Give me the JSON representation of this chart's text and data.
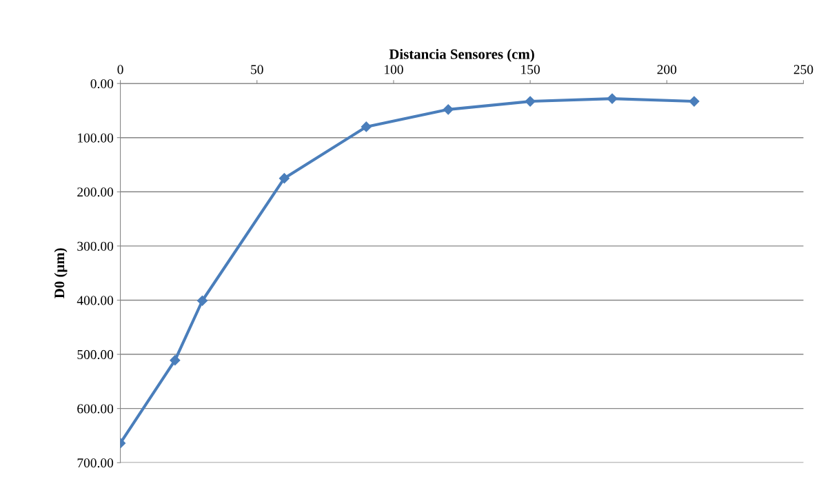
{
  "chart_data": {
    "type": "line",
    "xlabel": "Distancia Sensores (cm)",
    "ylabel": "D0 (µm)",
    "x": [
      0,
      20,
      30,
      60,
      90,
      120,
      150,
      180,
      210
    ],
    "series": [
      {
        "color": "#4a7ebb",
        "values": [
          664,
          511,
          401,
          175,
          80,
          48,
          33,
          28,
          33
        ]
      }
    ],
    "xlim": [
      0,
      250
    ],
    "xticks": [
      0,
      50,
      100,
      150,
      200,
      250
    ],
    "ylim": [
      700,
      0
    ],
    "yticks": [
      {
        "value": 0,
        "label": "0.00"
      },
      {
        "value": 100,
        "label": "100.00"
      },
      {
        "value": 200,
        "label": "200.00"
      },
      {
        "value": 300,
        "label": "300.00"
      },
      {
        "value": 400,
        "label": "400.00"
      },
      {
        "value": 500,
        "label": "500.00"
      },
      {
        "value": 600,
        "label": "600.00"
      },
      {
        "value": 700,
        "label": "700.00"
      }
    ],
    "grid": "y",
    "marker": "diamond",
    "line_style": "solid",
    "legend": false
  }
}
